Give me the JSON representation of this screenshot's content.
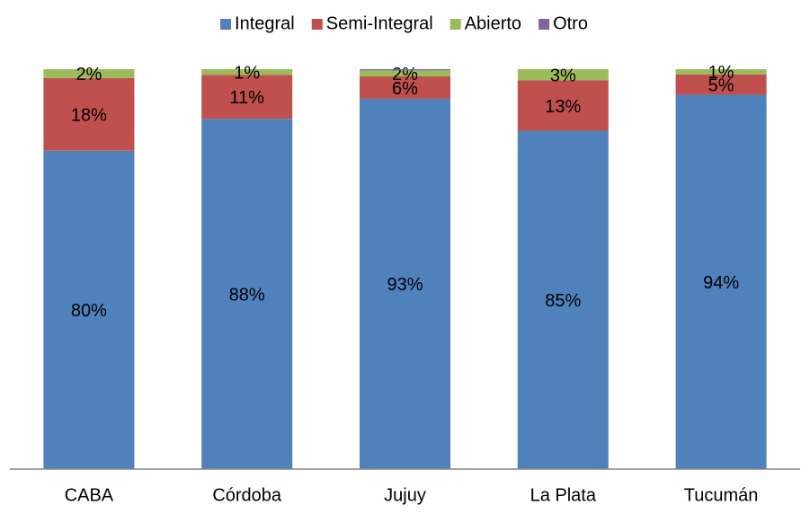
{
  "chart_data": {
    "type": "stacked_bar",
    "categories": [
      "CABA",
      "Córdoba",
      "Jujuy",
      "La Plata",
      "Tucumán"
    ],
    "series": [
      {
        "name": "Integral",
        "color": "#4f81bd",
        "values": [
          79.6,
          87.6,
          92.6,
          84.6,
          93.6
        ],
        "value_labels": [
          "80%",
          "88%",
          "93%",
          "85%",
          "94%"
        ]
      },
      {
        "name": "Semi-Integral",
        "color": "#c0504d",
        "values": [
          18.2,
          11.0,
          5.6,
          12.6,
          5.1
        ],
        "value_labels": [
          "18%",
          "11%",
          "6%",
          "13%",
          "5%"
        ]
      },
      {
        "name": "Abierto",
        "color": "#9bbb59",
        "values": [
          2.2,
          1.4,
          1.5,
          2.8,
          1.3
        ],
        "value_labels": [
          "2%",
          "1%",
          "2%",
          "3%",
          "1%"
        ]
      },
      {
        "name": "Otro",
        "color": "#8064a2",
        "values": [
          0,
          0,
          0.3,
          0,
          0
        ]
      }
    ],
    "ylim": [
      0,
      100
    ],
    "legend": "top"
  }
}
